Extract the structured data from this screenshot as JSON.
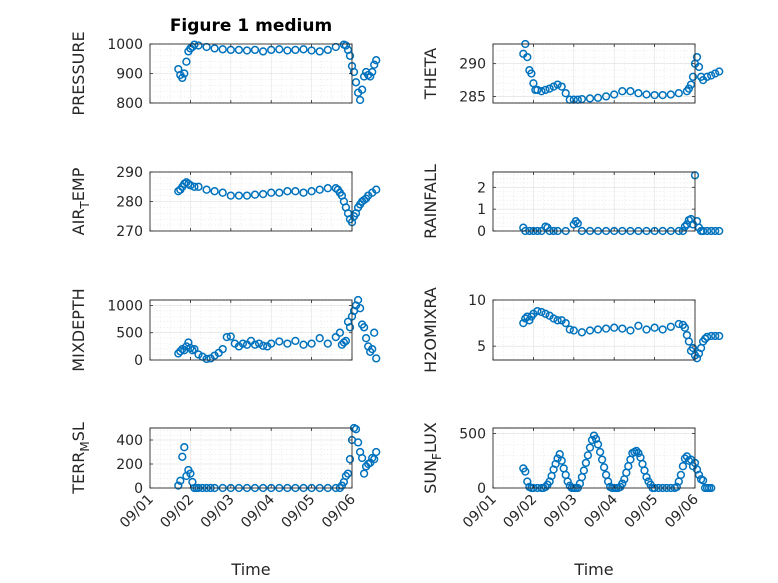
{
  "figure": {
    "title": "Figure 1 medium",
    "xlabel": "Time",
    "x_tick_labels": [
      "09/01",
      "09/02",
      "09/03",
      "09/04",
      "09/05",
      "09/06"
    ],
    "marker_color": "#0072bd"
  },
  "chart_data": [
    {
      "type": "scatter",
      "id": "pressure",
      "panel": "row1-left",
      "ylabel": "PRESSURE",
      "ylabel_sub": "",
      "ylabel_tail": "",
      "ylim": [
        800,
        1000
      ],
      "yticks": [
        800,
        900,
        1000
      ],
      "xlim": [
        "09/01",
        "09/06"
      ],
      "t": [
        0.7,
        0.75,
        0.8,
        0.85,
        0.9,
        0.95,
        1.0,
        1.05,
        1.1,
        1.2,
        1.4,
        1.6,
        1.8,
        2.0,
        2.2,
        2.4,
        2.6,
        2.8,
        3.0,
        3.2,
        3.4,
        3.6,
        3.8,
        4.0,
        4.2,
        4.4,
        4.6,
        4.8,
        4.85,
        4.9,
        4.95,
        5.0,
        5.05,
        5.1,
        5.15,
        5.2,
        5.25,
        5.3,
        5.35,
        5.4,
        5.45,
        5.5,
        5.55,
        5.6
      ],
      "y": [
        915,
        895,
        885,
        900,
        940,
        975,
        985,
        990,
        998,
        995,
        990,
        985,
        982,
        980,
        980,
        978,
        980,
        975,
        980,
        982,
        978,
        980,
        982,
        978,
        975,
        980,
        990,
        998,
        995,
        980,
        960,
        925,
        905,
        870,
        835,
        810,
        845,
        890,
        905,
        895,
        890,
        905,
        930,
        945
      ]
    },
    {
      "type": "scatter",
      "id": "theta",
      "panel": "row1-right",
      "ylabel": "THETA",
      "ylabel_sub": "",
      "ylabel_tail": "",
      "ylim": [
        284,
        293
      ],
      "yticks": [
        285,
        290
      ],
      "xlim": [
        "09/01",
        "09/06"
      ],
      "t": [
        0.75,
        0.8,
        0.85,
        0.9,
        0.95,
        1.0,
        1.05,
        1.1,
        1.2,
        1.3,
        1.4,
        1.5,
        1.6,
        1.7,
        1.8,
        1.9,
        2.0,
        2.1,
        2.2,
        2.4,
        2.6,
        2.8,
        3.0,
        3.2,
        3.4,
        3.6,
        3.8,
        4.0,
        4.2,
        4.4,
        4.6,
        4.8,
        4.85,
        4.9,
        4.95,
        5.0,
        5.05,
        5.1,
        5.15,
        5.2,
        5.3,
        5.4,
        5.5,
        5.6
      ],
      "y": [
        291.5,
        293,
        291,
        289,
        288.5,
        287,
        286,
        286,
        285.8,
        286,
        286.2,
        286.5,
        286.8,
        286.5,
        285.5,
        284.5,
        284.5,
        284.5,
        284.6,
        284.7,
        284.8,
        285,
        285.3,
        285.8,
        285.8,
        285.5,
        285.3,
        285.2,
        285.2,
        285.3,
        285.5,
        285.8,
        286.2,
        286.8,
        288,
        290,
        291,
        289.5,
        288,
        287.5,
        288,
        288.2,
        288.5,
        288.8
      ]
    },
    {
      "type": "scatter",
      "id": "air_temp",
      "panel": "row2-left",
      "ylabel": "AIR",
      "ylabel_sub": "T",
      "ylabel_tail": "EMP",
      "ylim": [
        270,
        290
      ],
      "yticks": [
        270,
        280,
        290
      ],
      "xlim": [
        "09/01",
        "09/06"
      ],
      "t": [
        0.7,
        0.75,
        0.8,
        0.85,
        0.9,
        0.95,
        1.0,
        1.1,
        1.2,
        1.4,
        1.6,
        1.8,
        2.0,
        2.2,
        2.4,
        2.6,
        2.8,
        3.0,
        3.2,
        3.4,
        3.6,
        3.8,
        4.0,
        4.2,
        4.4,
        4.6,
        4.65,
        4.7,
        4.75,
        4.8,
        4.85,
        4.9,
        4.95,
        5.0,
        5.05,
        5.1,
        5.15,
        5.2,
        5.25,
        5.3,
        5.35,
        5.4,
        5.5,
        5.6
      ],
      "y": [
        283.5,
        284,
        285,
        286,
        286.5,
        286,
        285.5,
        285,
        285,
        284,
        283.5,
        283,
        282,
        282,
        282,
        282.3,
        282.5,
        283,
        283,
        283.5,
        283.5,
        283,
        283.5,
        284,
        284.5,
        284.5,
        284,
        283,
        282,
        280,
        278,
        276,
        274,
        273,
        275,
        276,
        278,
        279,
        280,
        280.5,
        281,
        282,
        283,
        284
      ]
    },
    {
      "type": "scatter",
      "id": "rainfall",
      "panel": "row2-right",
      "ylabel": "RAINFALL",
      "ylabel_sub": "",
      "ylabel_tail": "",
      "ylim": [
        0,
        2.7
      ],
      "yticks": [
        0,
        1,
        2
      ],
      "xlim": [
        "09/01",
        "09/06"
      ],
      "t": [
        0.75,
        0.8,
        0.9,
        1.0,
        1.1,
        1.2,
        1.3,
        1.35,
        1.4,
        1.5,
        1.6,
        1.8,
        2.0,
        2.05,
        2.1,
        2.2,
        2.4,
        2.6,
        2.8,
        3.0,
        3.2,
        3.4,
        3.6,
        3.8,
        4.0,
        4.2,
        4.4,
        4.6,
        4.7,
        4.75,
        4.8,
        4.85,
        4.9,
        4.95,
        5.0,
        5.05,
        5.1,
        5.15,
        5.2,
        5.3,
        5.4,
        5.5,
        5.6
      ],
      "y": [
        0.15,
        0,
        0,
        0,
        0,
        0,
        0.2,
        0.15,
        0,
        0,
        0,
        0,
        0.3,
        0.45,
        0.35,
        0,
        0,
        0,
        0,
        0,
        0,
        0,
        0,
        0,
        0,
        0,
        0,
        0,
        0,
        0.2,
        0.3,
        0.5,
        0.55,
        0.3,
        2.55,
        0.45,
        0.15,
        0,
        0,
        0,
        0,
        0,
        0
      ]
    },
    {
      "type": "scatter",
      "id": "mixdepth",
      "panel": "row3-left",
      "ylabel": "MIXDEPTH",
      "ylabel_sub": "",
      "ylabel_tail": "",
      "ylim": [
        0,
        1100
      ],
      "yticks": [
        0,
        500,
        1000
      ],
      "xlim": [
        "09/01",
        "09/06"
      ],
      "t": [
        0.7,
        0.75,
        0.8,
        0.85,
        0.9,
        0.95,
        1.0,
        1.05,
        1.1,
        1.2,
        1.3,
        1.4,
        1.5,
        1.6,
        1.7,
        1.8,
        1.9,
        2.0,
        2.1,
        2.2,
        2.3,
        2.4,
        2.5,
        2.6,
        2.7,
        2.8,
        2.9,
        3.0,
        3.2,
        3.4,
        3.6,
        3.8,
        4.0,
        4.2,
        4.4,
        4.6,
        4.7,
        4.75,
        4.8,
        4.85,
        4.9,
        4.95,
        5.0,
        5.05,
        5.1,
        5.15,
        5.2,
        5.25,
        5.3,
        5.35,
        5.4,
        5.45,
        5.5,
        5.55,
        5.6
      ],
      "y": [
        120,
        160,
        200,
        180,
        250,
        320,
        220,
        180,
        200,
        100,
        60,
        20,
        30,
        80,
        130,
        200,
        420,
        430,
        300,
        250,
        300,
        280,
        350,
        280,
        300,
        260,
        250,
        300,
        340,
        300,
        350,
        280,
        300,
        400,
        300,
        420,
        500,
        280,
        320,
        350,
        700,
        600,
        800,
        900,
        1000,
        1100,
        950,
        650,
        600,
        400,
        250,
        150,
        200,
        500,
        30
      ]
    },
    {
      "type": "scatter",
      "id": "h2omixra",
      "panel": "row3-right",
      "ylabel": "H2OMIXRA",
      "ylabel_sub": "",
      "ylabel_tail": "",
      "ylim": [
        3.5,
        10
      ],
      "yticks": [
        5,
        10
      ],
      "xlim": [
        "09/01",
        "09/06"
      ],
      "t": [
        0.75,
        0.8,
        0.85,
        0.9,
        0.95,
        1.0,
        1.1,
        1.2,
        1.3,
        1.4,
        1.5,
        1.6,
        1.7,
        1.8,
        1.9,
        2.0,
        2.2,
        2.4,
        2.6,
        2.8,
        3.0,
        3.2,
        3.4,
        3.6,
        3.8,
        4.0,
        4.2,
        4.4,
        4.6,
        4.7,
        4.75,
        4.8,
        4.85,
        4.9,
        4.95,
        5.0,
        5.05,
        5.1,
        5.15,
        5.2,
        5.25,
        5.3,
        5.4,
        5.5,
        5.6
      ],
      "y": [
        7.5,
        8,
        8.2,
        7.8,
        8.2,
        8.5,
        8.8,
        8.7,
        8.5,
        8.3,
        8,
        7.8,
        7.8,
        7.5,
        6.8,
        6.7,
        6.5,
        6.7,
        6.8,
        6.9,
        7,
        6.9,
        6.7,
        7.2,
        6.8,
        7,
        6.8,
        7.1,
        7.4,
        7.3,
        7,
        6.2,
        5.5,
        4.5,
        4.8,
        4,
        3.7,
        4.2,
        4.8,
        5.5,
        5.8,
        6,
        6.1,
        6.1,
        6.1
      ]
    },
    {
      "type": "scatter",
      "id": "terr_msl",
      "panel": "row4-left",
      "ylabel": "TERR",
      "ylabel_sub": "M",
      "ylabel_tail": "SL",
      "ylim": [
        0,
        500
      ],
      "yticks": [
        0,
        200,
        400
      ],
      "xlim": [
        "09/01",
        "09/06"
      ],
      "t": [
        0.7,
        0.75,
        0.8,
        0.85,
        0.9,
        0.95,
        1.0,
        1.05,
        1.1,
        1.15,
        1.2,
        1.3,
        1.4,
        1.5,
        1.6,
        1.8,
        2.0,
        2.2,
        2.4,
        2.6,
        2.8,
        3.0,
        3.2,
        3.4,
        3.6,
        3.8,
        4.0,
        4.2,
        4.4,
        4.6,
        4.7,
        4.75,
        4.8,
        4.85,
        4.9,
        4.95,
        5.0,
        5.05,
        5.1,
        5.15,
        5.2,
        5.25,
        5.3,
        5.35,
        5.4,
        5.45,
        5.5,
        5.55,
        5.6
      ],
      "y": [
        20,
        60,
        260,
        340,
        100,
        150,
        120,
        50,
        0,
        0,
        0,
        0,
        0,
        0,
        0,
        0,
        0,
        0,
        0,
        0,
        0,
        0,
        0,
        0,
        0,
        0,
        0,
        0,
        0,
        0,
        0,
        20,
        50,
        100,
        120,
        240,
        400,
        500,
        490,
        380,
        300,
        250,
        120,
        180,
        200,
        210,
        250,
        240,
        300
      ]
    },
    {
      "type": "scatter",
      "id": "sun_flux",
      "panel": "row4-right",
      "ylabel": "SUN",
      "ylabel_sub": "F",
      "ylabel_tail": "LUX",
      "ylim": [
        0,
        550
      ],
      "yticks": [
        0,
        500
      ],
      "xlim": [
        "09/01",
        "09/06"
      ],
      "t": [
        0.75,
        0.8,
        0.85,
        0.9,
        0.95,
        1.0,
        1.1,
        1.2,
        1.25,
        1.3,
        1.35,
        1.4,
        1.45,
        1.5,
        1.55,
        1.6,
        1.65,
        1.7,
        1.75,
        1.8,
        1.85,
        1.9,
        1.95,
        2.0,
        2.05,
        2.1,
        2.15,
        2.2,
        2.25,
        2.3,
        2.35,
        2.4,
        2.45,
        2.5,
        2.55,
        2.6,
        2.65,
        2.7,
        2.75,
        2.8,
        2.85,
        2.9,
        2.95,
        3.0,
        3.05,
        3.1,
        3.15,
        3.2,
        3.25,
        3.3,
        3.35,
        3.4,
        3.45,
        3.5,
        3.55,
        3.6,
        3.65,
        3.7,
        3.75,
        3.8,
        3.85,
        3.9,
        3.95,
        4.0,
        4.1,
        4.2,
        4.3,
        4.4,
        4.5,
        4.55,
        4.6,
        4.65,
        4.7,
        4.75,
        4.8,
        4.85,
        4.9,
        4.95,
        5.0,
        5.05,
        5.1,
        5.15,
        5.2,
        5.25,
        5.3,
        5.35,
        5.4
      ],
      "y": [
        180,
        150,
        60,
        10,
        0,
        0,
        0,
        0,
        0,
        10,
        30,
        60,
        110,
        170,
        220,
        270,
        310,
        250,
        180,
        120,
        60,
        20,
        0,
        0,
        0,
        0,
        40,
        100,
        160,
        230,
        300,
        370,
        440,
        480,
        450,
        400,
        330,
        260,
        190,
        120,
        60,
        10,
        0,
        0,
        0,
        0,
        10,
        40,
        80,
        140,
        200,
        260,
        320,
        330,
        340,
        320,
        280,
        220,
        160,
        100,
        60,
        30,
        0,
        0,
        0,
        0,
        0,
        0,
        0,
        10,
        60,
        120,
        200,
        270,
        290,
        250,
        260,
        200,
        230,
        170,
        120,
        80,
        70,
        0,
        0,
        0,
        0
      ]
    }
  ]
}
